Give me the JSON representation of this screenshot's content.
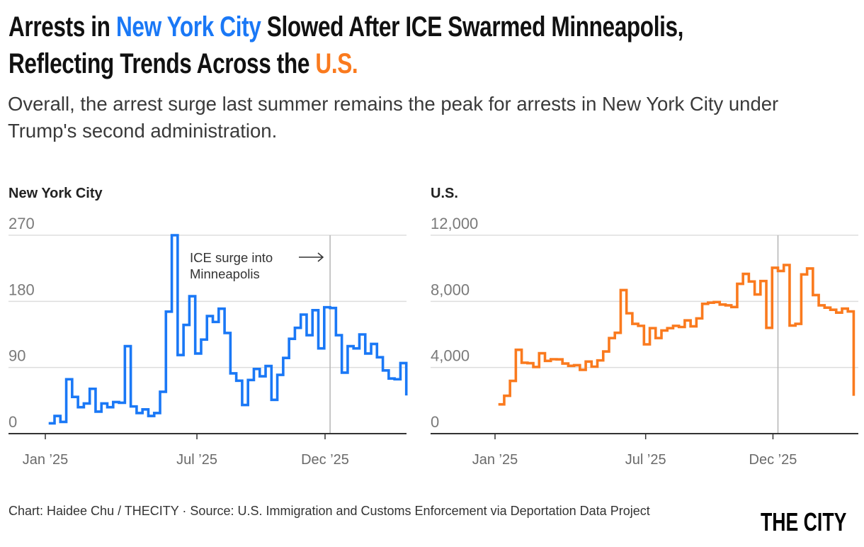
{
  "colors": {
    "nyc": "#1a78f6",
    "us": "#fa7a1e",
    "grid": "#dddddd",
    "axis": "#333333",
    "refline": "#b5b5b5"
  },
  "header": {
    "title_part1": "Arrests in ",
    "title_nyc": "New York City",
    "title_part2": " Slowed After ICE Swarmed Minneapolis, Reflecting Trends Across the ",
    "title_us": "U.S.",
    "subtitle": "Overall, the arrest surge last summer remains the peak for arrests in New York City under Trump's second administration."
  },
  "footer": {
    "credit": "Chart: Haidee Chu / THECITY · Source: U.S. Immigration and Customs Enforcement via Deportation Data Project",
    "logo": "THE CITY"
  },
  "chart_data": [
    {
      "type": "line",
      "interpolation": "step-after",
      "title": "New York City",
      "color": "#1a78f6",
      "ylim": [
        0,
        270
      ],
      "yticks": [
        0,
        90,
        180,
        270
      ],
      "ytick_labels": [
        "0",
        "90",
        "180",
        "270"
      ],
      "xticks": [
        {
          "date": "2025-01-01",
          "label": "Jan ’25"
        },
        {
          "date": "2025-07-01",
          "label": "Jul ’25"
        },
        {
          "date": "2025-12-01",
          "label": "Dec ’25"
        }
      ],
      "grid": true,
      "annotation": {
        "line1": "ICE surge into",
        "line2": "Minneapolis",
        "date": "2025-12-07"
      },
      "x": [
        "2025-01-05",
        "2025-01-12",
        "2025-01-19",
        "2025-01-26",
        "2025-02-02",
        "2025-02-09",
        "2025-02-16",
        "2025-02-23",
        "2025-03-02",
        "2025-03-09",
        "2025-03-16",
        "2025-03-23",
        "2025-03-30",
        "2025-04-06",
        "2025-04-13",
        "2025-04-20",
        "2025-04-27",
        "2025-05-04",
        "2025-05-11",
        "2025-05-18",
        "2025-05-25",
        "2025-06-01",
        "2025-06-08",
        "2025-06-15",
        "2025-06-22",
        "2025-06-29",
        "2025-07-06",
        "2025-07-13",
        "2025-07-20",
        "2025-07-27",
        "2025-08-03",
        "2025-08-10",
        "2025-08-17",
        "2025-08-24",
        "2025-08-31",
        "2025-09-07",
        "2025-09-14",
        "2025-09-21",
        "2025-09-28",
        "2025-10-05",
        "2025-10-12",
        "2025-10-19",
        "2025-10-26",
        "2025-11-02",
        "2025-11-09",
        "2025-11-16",
        "2025-11-23",
        "2025-11-30",
        "2025-12-07",
        "2025-12-14",
        "2025-12-21",
        "2025-12-28",
        "2026-01-04",
        "2026-01-11",
        "2026-01-18",
        "2026-01-25",
        "2026-02-01",
        "2026-02-08",
        "2026-02-15",
        "2026-02-22",
        "2026-03-01",
        "2026-03-08"
      ],
      "values": [
        14,
        24,
        16,
        74,
        50,
        36,
        41,
        61,
        30,
        41,
        36,
        43,
        42,
        119,
        37,
        28,
        33,
        24,
        28,
        57,
        166,
        270,
        107,
        148,
        187,
        109,
        128,
        160,
        152,
        170,
        137,
        82,
        72,
        39,
        73,
        88,
        78,
        92,
        46,
        80,
        103,
        129,
        144,
        162,
        134,
        168,
        116,
        172,
        171,
        134,
        83,
        119,
        116,
        135,
        109,
        122,
        104,
        86,
        75,
        74,
        96,
        52
      ]
    },
    {
      "type": "line",
      "interpolation": "step-after",
      "title": "U.S.",
      "color": "#fa7a1e",
      "ylim": [
        0,
        12000
      ],
      "yticks": [
        0,
        4000,
        8000,
        12000
      ],
      "ytick_labels": [
        "0",
        "4,000",
        "8,000",
        "12,000"
      ],
      "xticks": [
        {
          "date": "2025-01-01",
          "label": "Jan ’25"
        },
        {
          "date": "2025-07-01",
          "label": "Jul ’25"
        },
        {
          "date": "2025-12-01",
          "label": "Dec ’25"
        }
      ],
      "grid": true,
      "annotation": {
        "date": "2025-12-07"
      },
      "x": [
        "2025-01-05",
        "2025-01-12",
        "2025-01-19",
        "2025-01-26",
        "2025-02-02",
        "2025-02-09",
        "2025-02-16",
        "2025-02-23",
        "2025-03-02",
        "2025-03-09",
        "2025-03-16",
        "2025-03-23",
        "2025-03-30",
        "2025-04-06",
        "2025-04-13",
        "2025-04-20",
        "2025-04-27",
        "2025-05-04",
        "2025-05-11",
        "2025-05-18",
        "2025-05-25",
        "2025-06-01",
        "2025-06-08",
        "2025-06-15",
        "2025-06-22",
        "2025-06-29",
        "2025-07-06",
        "2025-07-13",
        "2025-07-20",
        "2025-07-27",
        "2025-08-03",
        "2025-08-10",
        "2025-08-17",
        "2025-08-24",
        "2025-08-31",
        "2025-09-07",
        "2025-09-14",
        "2025-09-21",
        "2025-09-28",
        "2025-10-05",
        "2025-10-12",
        "2025-10-19",
        "2025-10-26",
        "2025-11-02",
        "2025-11-09",
        "2025-11-16",
        "2025-11-23",
        "2025-11-30",
        "2025-12-07",
        "2025-12-14",
        "2025-12-21",
        "2025-12-28",
        "2026-01-04",
        "2026-01-11",
        "2026-01-18",
        "2026-01-25",
        "2026-02-01",
        "2026-02-08",
        "2026-02-15",
        "2026-02-22",
        "2026-03-01",
        "2026-03-08"
      ],
      "values": [
        1770,
        2290,
        3190,
        5070,
        4290,
        4260,
        4030,
        4860,
        4400,
        4500,
        4490,
        4240,
        4100,
        4140,
        3860,
        4360,
        4050,
        4430,
        4970,
        5780,
        6100,
        8680,
        7280,
        6640,
        6520,
        5400,
        6380,
        5780,
        6240,
        6380,
        6520,
        6450,
        6850,
        6490,
        6970,
        7850,
        7920,
        7960,
        7810,
        7760,
        7660,
        9060,
        9660,
        9200,
        8420,
        9230,
        6400,
        10030,
        9840,
        10200,
        6540,
        6640,
        9630,
        9990,
        8380,
        7760,
        7620,
        7490,
        7320,
        7560,
        7390,
        2290
      ]
    }
  ]
}
